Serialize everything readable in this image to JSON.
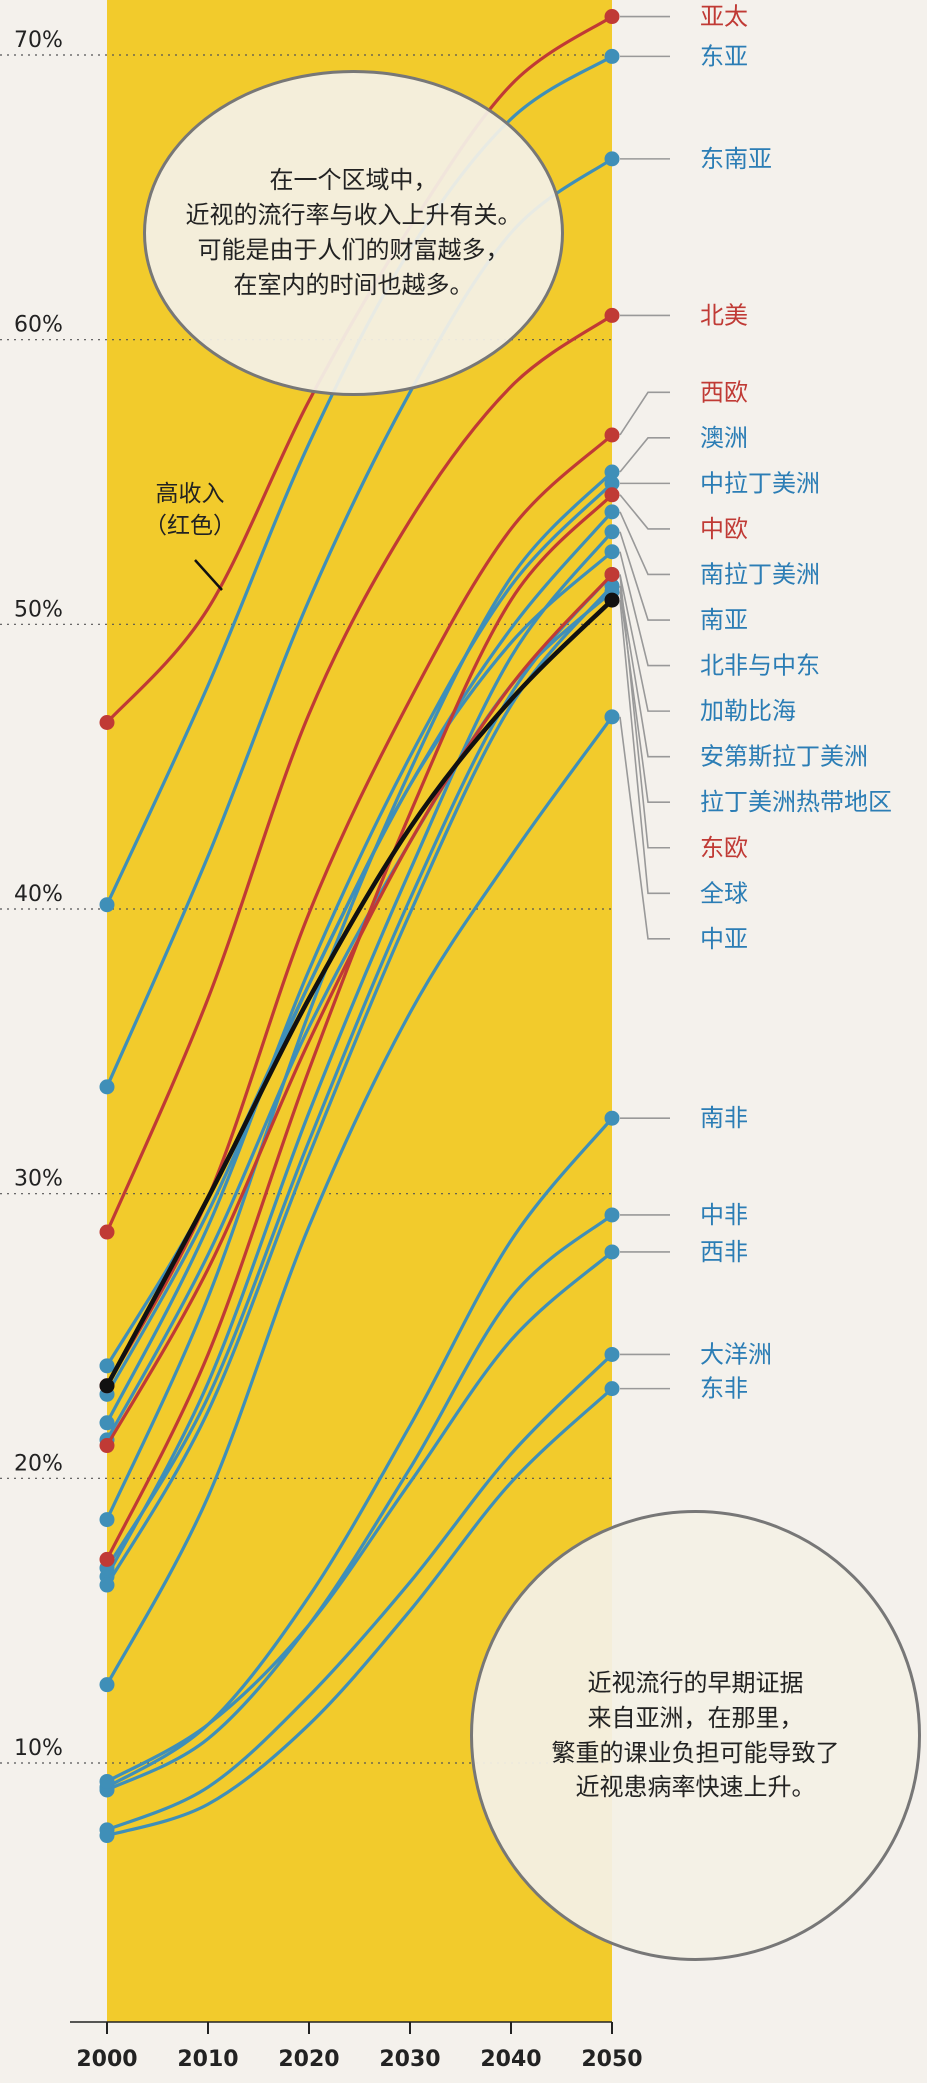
{
  "chart_data": {
    "type": "line",
    "x": [
      2000,
      2010,
      2020,
      2030,
      2040,
      2050
    ],
    "xticks": [
      "2000",
      "2010",
      "2020",
      "2030",
      "2040",
      "2050"
    ],
    "yticks": [
      "10%",
      "20%",
      "30%",
      "40%",
      "50%",
      "60%",
      "70%"
    ],
    "ylim": [
      3,
      72
    ],
    "grid": "dotted horizontal",
    "highlight_band": [
      2000,
      2050
    ],
    "colors": {
      "high_income": "#c03a35",
      "other": "#3f8fb8",
      "global": "#111111",
      "band": "#f2cb2c",
      "leader": "#999999"
    },
    "series": [
      {
        "name": "亚太",
        "group": "high_income",
        "values": [
          46.2,
          50.2,
          57.5,
          63.6,
          68.6,
          71.0
        ],
        "label_y": 71.0
      },
      {
        "name": "东亚",
        "group": "other",
        "values": [
          39.8,
          47.5,
          56.0,
          62.8,
          67.4,
          69.6
        ],
        "label_y": 69.6
      },
      {
        "name": "东南亚",
        "group": "other",
        "values": [
          33.4,
          41.5,
          50.5,
          57.8,
          63.4,
          66.0
        ],
        "label_y": 66.0
      },
      {
        "name": "北美",
        "group": "high_income",
        "values": [
          28.3,
          36.5,
          46.5,
          53.3,
          58.0,
          60.5
        ],
        "label_y": 60.5
      },
      {
        "name": "西欧",
        "group": "high_income",
        "values": [
          22.9,
          29.5,
          39.5,
          47.0,
          53.0,
          56.3
        ],
        "label_y": 57.8
      },
      {
        "name": "澳洲",
        "group": "other",
        "values": [
          18.2,
          26.0,
          36.0,
          44.5,
          51.3,
          55.0
        ],
        "label_y": 56.2
      },
      {
        "name": "中拉丁美洲",
        "group": "other",
        "values": [
          21.6,
          28.5,
          37.5,
          45.0,
          51.0,
          54.6
        ],
        "label_y": 54.6
      },
      {
        "name": "中欧",
        "group": "high_income",
        "values": [
          16.8,
          24.0,
          34.0,
          43.0,
          50.5,
          54.2
        ],
        "label_y": 53.0
      },
      {
        "name": "南拉丁美洲",
        "group": "other",
        "values": [
          22.6,
          29.0,
          37.0,
          44.0,
          49.5,
          53.6
        ],
        "label_y": 51.4
      },
      {
        "name": "南亚",
        "group": "other",
        "values": [
          16.2,
          23.0,
          32.5,
          41.0,
          48.5,
          52.9
        ],
        "label_y": 49.8
      },
      {
        "name": "北非与中东",
        "group": "other",
        "values": [
          23.6,
          29.5,
          37.0,
          44.0,
          49.0,
          52.2
        ],
        "label_y": 48.2
      },
      {
        "name": "加勒比海",
        "group": "other",
        "values": [
          16.5,
          22.5,
          31.5,
          40.0,
          47.2,
          51.4
        ],
        "label_y": 46.6
      },
      {
        "name": "安第斯拉丁美洲",
        "group": "other",
        "values": [
          15.9,
          22.0,
          31.0,
          39.5,
          46.8,
          51.0
        ],
        "label_y": 45.0
      },
      {
        "name": "拉丁美洲热带地区",
        "group": "other",
        "values": [
          21.0,
          27.5,
          35.5,
          42.0,
          47.5,
          50.8
        ],
        "label_y": 43.4
      },
      {
        "name": "东欧",
        "group": "high_income",
        "values": [
          20.8,
          27.0,
          35.0,
          42.0,
          47.5,
          51.4
        ],
        "label_y": 41.8
      },
      {
        "name": "全球",
        "group": "global",
        "values": [
          22.9,
          29.5,
          36.5,
          42.5,
          47.0,
          50.5
        ],
        "label_y": 40.2
      },
      {
        "name": "中亚",
        "group": "other",
        "values": [
          12.4,
          19.0,
          28.5,
          36.0,
          41.5,
          46.4
        ],
        "label_y": 38.6
      },
      {
        "name": "南非",
        "group": "other",
        "values": [
          8.8,
          11.0,
          15.5,
          21.5,
          28.0,
          32.3
        ],
        "label_y": 32.3
      },
      {
        "name": "中非",
        "group": "other",
        "values": [
          8.7,
          10.5,
          14.5,
          20.0,
          26.0,
          28.9
        ],
        "label_y": 28.9
      },
      {
        "name": "西非",
        "group": "other",
        "values": [
          9.0,
          11.0,
          14.5,
          19.5,
          24.5,
          27.6
        ],
        "label_y": 27.6
      },
      {
        "name": "大洋洲",
        "group": "other",
        "values": [
          7.3,
          8.8,
          12.0,
          16.0,
          20.5,
          24.0
        ],
        "label_y": 24.0
      },
      {
        "name": "东非",
        "group": "other",
        "values": [
          7.1,
          8.2,
          11.0,
          15.0,
          19.5,
          22.8
        ],
        "label_y": 22.8
      }
    ],
    "annotations": {
      "high_income_label": "高收入\n（红色）",
      "note_top": "在一个区域中，\n近视的流行率与收入上升有关。\n可能是由于人们的财富越多，\n在室内的时间也越多。",
      "note_bottom": "近视流行的早期证据\n来自亚洲，在那里，\n繁重的课业负担可能导致了\n近视患病率快速上升。"
    }
  }
}
